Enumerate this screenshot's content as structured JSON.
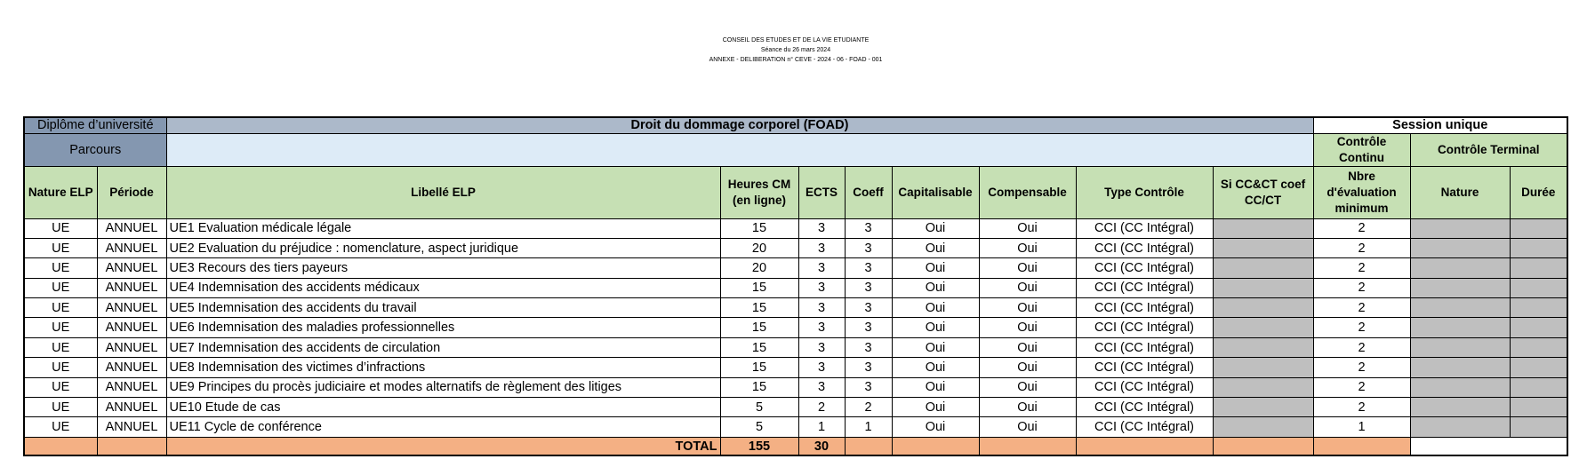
{
  "header": {
    "lines": [
      "CONSEIL DES ETUDES ET DE LA VIE ETUDIANTE",
      "Séance du 26 mars 2024",
      "ANNEXE - DELIBERATION n° CEVE - 2024 - 06 - FOAD - 001"
    ]
  },
  "table": {
    "diplome_label": "Diplôme d’université",
    "diplome_title": "Droit du dommage corporel (FOAD)",
    "session": "Session unique",
    "parcours_label": "Parcours",
    "controle_continu": "Contrôle Continu",
    "controle_terminal": "Contrôle Terminal",
    "columns": [
      "Nature ELP",
      "Période",
      "Libellé ELP",
      "Heures CM (en ligne)",
      "ECTS",
      "Coeff",
      "Capitalisable",
      "Compensable",
      "Type  Contrôle",
      "Si CC&CT coef CC/CT",
      "Nbre d'évaluation minimum",
      "Nature",
      "Durée"
    ],
    "rows": [
      [
        "UE",
        "ANNUEL",
        "UE1 Evaluation médicale légale",
        15,
        3,
        3,
        "Oui",
        "Oui",
        "CCI (CC Intégral)",
        2
      ],
      [
        "UE",
        "ANNUEL",
        "UE2 Evaluation du préjudice : nomenclature, aspect juridique",
        20,
        3,
        3,
        "Oui",
        "Oui",
        "CCI (CC Intégral)",
        2
      ],
      [
        "UE",
        "ANNUEL",
        "UE3 Recours des tiers payeurs",
        20,
        3,
        3,
        "Oui",
        "Oui",
        "CCI (CC Intégral)",
        2
      ],
      [
        "UE",
        "ANNUEL",
        "UE4 Indemnisation des accidents médicaux",
        15,
        3,
        3,
        "Oui",
        "Oui",
        "CCI (CC Intégral)",
        2
      ],
      [
        "UE",
        "ANNUEL",
        "UE5 Indemnisation des accidents du travail",
        15,
        3,
        3,
        "Oui",
        "Oui",
        "CCI (CC Intégral)",
        2
      ],
      [
        "UE",
        "ANNUEL",
        "UE6 Indemnisation des maladies professionnelles",
        15,
        3,
        3,
        "Oui",
        "Oui",
        "CCI (CC Intégral)",
        2
      ],
      [
        "UE",
        "ANNUEL",
        "UE7 Indemnisation des accidents de circulation",
        15,
        3,
        3,
        "Oui",
        "Oui",
        "CCI (CC Intégral)",
        2
      ],
      [
        "UE",
        "ANNUEL",
        "UE8 Indemnisation des victimes d’infractions",
        15,
        3,
        3,
        "Oui",
        "Oui",
        "CCI (CC Intégral)",
        2
      ],
      [
        "UE",
        "ANNUEL",
        "UE9 Principes du procès judiciaire et modes alternatifs de règlement des litiges",
        15,
        3,
        3,
        "Oui",
        "Oui",
        "CCI (CC Intégral)",
        2
      ],
      [
        "UE",
        "ANNUEL",
        "UE10 Etude de cas",
        5,
        2,
        2,
        "Oui",
        "Oui",
        "CCI (CC Intégral)",
        2
      ],
      [
        "UE",
        "ANNUEL",
        "UE11 Cycle de conférence",
        5,
        1,
        1,
        "Oui",
        "Oui",
        "CCI (CC Intégral)",
        1
      ]
    ],
    "total": {
      "label": "TOTAL",
      "heures": 155,
      "ects": 30
    }
  }
}
